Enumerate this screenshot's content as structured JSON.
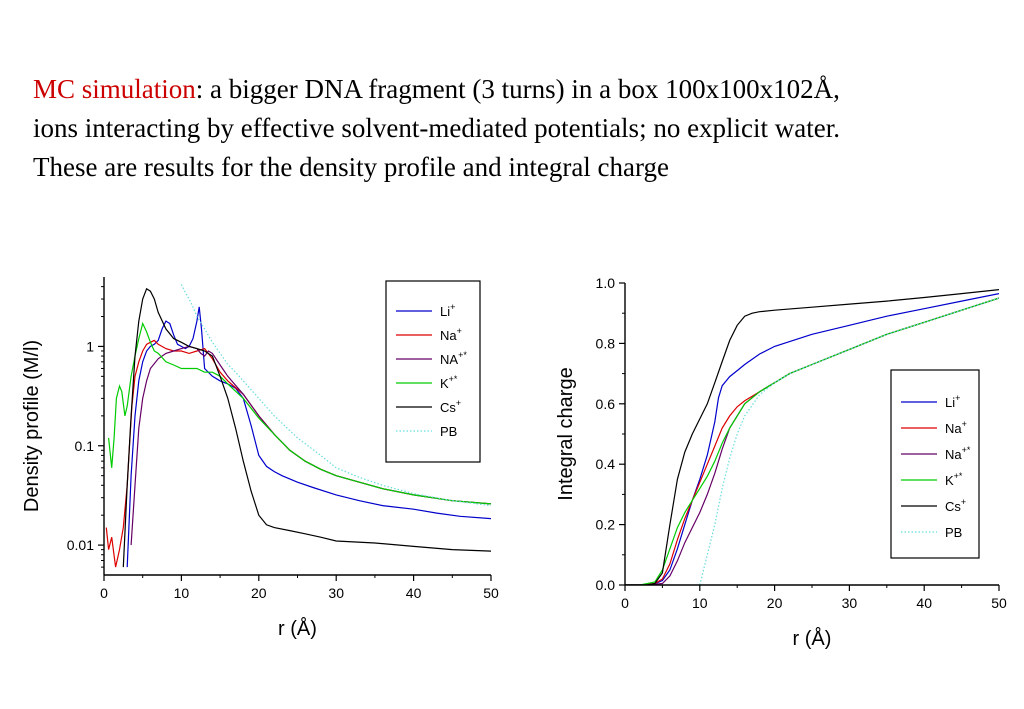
{
  "headline": {
    "highlight": "MC simulation",
    "line1_rest": ": a bigger DNA fragment (3 turns) in a box 100x100x102Å,",
    "line2": "ions interacting by effective solvent-mediated potentials; no explicit water.",
    "line3": "These are results for the density profile and integral charge"
  },
  "chart_data": [
    {
      "type": "line",
      "title": "",
      "xlabel": "r (Å)",
      "ylabel": "Density profile (M/l)",
      "xlim": [
        0,
        50
      ],
      "ylim": [
        0.005,
        5
      ],
      "yscale": "log",
      "x_ticks": [
        "0",
        "10",
        "20",
        "30",
        "40",
        "50"
      ],
      "y_ticks": [
        "0.01",
        "0.1",
        "1"
      ],
      "legend_position": "top-right",
      "series": [
        {
          "name": "Li",
          "sup": "+",
          "color": "#0000cc",
          "dash": "",
          "x": [
            3.0,
            3.5,
            4,
            4.5,
            5,
            5.5,
            6,
            6.5,
            7,
            7.5,
            8,
            8.5,
            9,
            9.5,
            10,
            10.5,
            11,
            11.5,
            12,
            12.3,
            12.6,
            13,
            14,
            15,
            16,
            17,
            18,
            19,
            20,
            21,
            22,
            23,
            25,
            27,
            30,
            33,
            36,
            40,
            43,
            46,
            50
          ],
          "y": [
            0.006,
            0.05,
            0.2,
            0.45,
            0.7,
            0.9,
            1.0,
            1.05,
            1.15,
            1.5,
            1.8,
            1.7,
            1.3,
            1.05,
            1.0,
            0.95,
            1.0,
            1.2,
            1.8,
            2.5,
            1.5,
            0.6,
            0.5,
            0.45,
            0.42,
            0.38,
            0.3,
            0.16,
            0.08,
            0.062,
            0.055,
            0.05,
            0.043,
            0.038,
            0.032,
            0.028,
            0.025,
            0.023,
            0.021,
            0.0195,
            0.0185
          ]
        },
        {
          "name": "Na",
          "sup": "+",
          "color": "#dd0000",
          "dash": "",
          "x": [
            0.3,
            0.6,
            1,
            1.5,
            2,
            2.5,
            3,
            3.3,
            3.6,
            4,
            4.5,
            5,
            5.5,
            6,
            6.5,
            7,
            8,
            9,
            10,
            11,
            12,
            13,
            14,
            15,
            16,
            18,
            20,
            22,
            24,
            26,
            28,
            30,
            33,
            36,
            40,
            45,
            50
          ],
          "y": [
            0.015,
            0.009,
            0.012,
            0.006,
            0.009,
            0.015,
            0.04,
            0.1,
            0.25,
            0.5,
            0.7,
            0.9,
            1.05,
            1.1,
            1.15,
            1.05,
            0.95,
            0.9,
            0.9,
            0.85,
            0.9,
            0.95,
            0.75,
            0.55,
            0.45,
            0.33,
            0.2,
            0.13,
            0.09,
            0.07,
            0.058,
            0.05,
            0.043,
            0.037,
            0.032,
            0.028,
            0.026
          ]
        },
        {
          "name": "NA",
          "sup": "+*",
          "color": "#660066",
          "dash": "",
          "x": [
            3.5,
            4,
            4.5,
            5,
            5.5,
            6,
            7,
            8,
            9,
            10,
            11,
            12,
            12.5,
            13,
            13.5,
            14,
            15,
            16,
            18,
            20,
            22,
            24,
            26,
            28,
            30,
            33,
            36,
            40,
            45,
            50
          ],
          "y": [
            0.01,
            0.04,
            0.15,
            0.3,
            0.45,
            0.6,
            0.75,
            0.85,
            0.9,
            0.95,
            1.0,
            0.95,
            0.85,
            0.8,
            0.9,
            0.85,
            0.65,
            0.5,
            0.33,
            0.2,
            0.13,
            0.09,
            0.07,
            0.058,
            0.05,
            0.043,
            0.037,
            0.032,
            0.028,
            0.026
          ]
        },
        {
          "name": "K",
          "sup": "+*",
          "color": "#00cc00",
          "dash": "",
          "x": [
            0.6,
            1,
            1.3,
            1.6,
            2,
            2.3,
            2.7,
            3,
            3.5,
            4,
            4.5,
            5,
            5.5,
            6,
            6.5,
            7,
            8,
            9,
            10,
            11,
            12,
            13,
            14,
            15,
            16,
            18,
            20,
            22,
            24,
            26,
            28,
            30,
            33,
            36,
            40,
            45,
            50
          ],
          "y": [
            0.12,
            0.06,
            0.12,
            0.3,
            0.4,
            0.35,
            0.2,
            0.25,
            0.5,
            0.8,
            1.2,
            1.7,
            1.4,
            1.1,
            0.9,
            0.85,
            0.7,
            0.65,
            0.6,
            0.6,
            0.6,
            0.55,
            0.55,
            0.5,
            0.42,
            0.3,
            0.19,
            0.13,
            0.09,
            0.07,
            0.058,
            0.05,
            0.043,
            0.037,
            0.032,
            0.028,
            0.026
          ]
        },
        {
          "name": "Cs",
          "sup": "+",
          "color": "#000000",
          "dash": "",
          "x": [
            2.5,
            3,
            3.5,
            4,
            4.5,
            5,
            5.5,
            6,
            6.5,
            7,
            8,
            9,
            10,
            11,
            12,
            13,
            14,
            15,
            16,
            17,
            18,
            19,
            20,
            21,
            22,
            24,
            26,
            28,
            30,
            35,
            40,
            45,
            50
          ],
          "y": [
            0.006,
            0.04,
            0.2,
            0.8,
            1.8,
            3.0,
            3.8,
            3.6,
            3.0,
            2.2,
            1.5,
            1.2,
            1.1,
            1.0,
            0.95,
            0.9,
            0.8,
            0.5,
            0.3,
            0.15,
            0.07,
            0.035,
            0.02,
            0.016,
            0.015,
            0.014,
            0.013,
            0.012,
            0.011,
            0.0105,
            0.0097,
            0.009,
            0.0087
          ]
        },
        {
          "name": "PB",
          "sup": "",
          "color": "#66dddd",
          "dash": "1.5,2",
          "x": [
            10,
            10.5,
            11,
            11.5,
            12,
            13,
            14,
            15,
            16,
            17,
            18,
            20,
            22,
            25,
            28,
            30,
            33,
            36,
            40,
            45,
            50
          ],
          "y": [
            4.2,
            3.5,
            3.0,
            2.5,
            2.0,
            1.5,
            1.1,
            0.85,
            0.66,
            0.55,
            0.45,
            0.3,
            0.2,
            0.12,
            0.08,
            0.06,
            0.048,
            0.04,
            0.033,
            0.028,
            0.025
          ]
        }
      ]
    },
    {
      "type": "line",
      "title": "",
      "xlabel": "r (Å)",
      "ylabel": "Integral charge",
      "xlim": [
        0,
        50
      ],
      "ylim": [
        0,
        1
      ],
      "x_ticks": [
        "0",
        "10",
        "20",
        "30",
        "40",
        "50"
      ],
      "y_ticks": [
        "0.0",
        "0.2",
        "0.4",
        "0.6",
        "0.8",
        "1.0"
      ],
      "legend_position": "center-right",
      "series": [
        {
          "name": "Li",
          "sup": "+",
          "color": "#0000cc",
          "dash": "",
          "x": [
            0,
            2,
            4,
            5,
            6,
            7,
            8,
            9,
            10,
            11,
            12,
            12.5,
            13,
            14,
            15,
            16,
            18,
            20,
            25,
            30,
            35,
            40,
            45,
            50
          ],
          "y": [
            0,
            0,
            0.004,
            0.015,
            0.05,
            0.12,
            0.2,
            0.28,
            0.35,
            0.43,
            0.54,
            0.62,
            0.66,
            0.69,
            0.71,
            0.73,
            0.765,
            0.79,
            0.83,
            0.86,
            0.89,
            0.915,
            0.94,
            0.965
          ]
        },
        {
          "name": "Na",
          "sup": "+",
          "color": "#dd0000",
          "dash": "",
          "x": [
            0,
            2,
            4,
            5,
            6,
            7,
            8,
            9,
            10,
            11,
            12,
            13,
            14,
            15,
            16,
            18,
            20,
            22,
            25,
            30,
            35,
            40,
            45,
            50
          ],
          "y": [
            0,
            0,
            0.005,
            0.02,
            0.07,
            0.15,
            0.22,
            0.28,
            0.34,
            0.4,
            0.46,
            0.52,
            0.56,
            0.59,
            0.61,
            0.64,
            0.67,
            0.7,
            0.73,
            0.78,
            0.83,
            0.87,
            0.91,
            0.95
          ]
        },
        {
          "name": "Na",
          "sup": "+*",
          "color": "#660066",
          "dash": "",
          "x": [
            0,
            3,
            5,
            6,
            7,
            8,
            9,
            10,
            11,
            12,
            13,
            14,
            15,
            16,
            18,
            20,
            22,
            25,
            30,
            35,
            40,
            45,
            50
          ],
          "y": [
            0,
            0,
            0.005,
            0.03,
            0.08,
            0.14,
            0.19,
            0.24,
            0.3,
            0.37,
            0.45,
            0.52,
            0.56,
            0.6,
            0.64,
            0.67,
            0.7,
            0.73,
            0.78,
            0.83,
            0.87,
            0.91,
            0.95
          ]
        },
        {
          "name": "K",
          "sup": "+*",
          "color": "#00cc00",
          "dash": "",
          "x": [
            0,
            2,
            4,
            5,
            6,
            7,
            8,
            9,
            10,
            11,
            12,
            13,
            14,
            15,
            16,
            18,
            20,
            22,
            25,
            30,
            35,
            40,
            45,
            50
          ],
          "y": [
            0,
            0,
            0.01,
            0.05,
            0.12,
            0.19,
            0.24,
            0.28,
            0.32,
            0.36,
            0.41,
            0.47,
            0.52,
            0.56,
            0.6,
            0.64,
            0.67,
            0.7,
            0.73,
            0.78,
            0.83,
            0.87,
            0.91,
            0.95
          ]
        },
        {
          "name": "Cs",
          "sup": "+",
          "color": "#000000",
          "dash": "",
          "x": [
            0,
            3,
            4,
            5,
            6,
            7,
            8,
            9,
            10,
            11,
            12,
            13,
            14,
            15,
            16,
            17,
            18,
            20,
            25,
            30,
            35,
            40,
            45,
            50
          ],
          "y": [
            0,
            0,
            0.005,
            0.04,
            0.2,
            0.35,
            0.44,
            0.5,
            0.55,
            0.6,
            0.67,
            0.74,
            0.81,
            0.86,
            0.89,
            0.9,
            0.905,
            0.91,
            0.92,
            0.93,
            0.94,
            0.952,
            0.965,
            0.978
          ]
        },
        {
          "name": "PB",
          "sup": "",
          "color": "#66dddd",
          "dash": "1.5,2",
          "x": [
            10,
            10.5,
            11,
            12,
            13,
            14,
            15,
            16,
            18,
            20,
            22,
            25,
            30,
            35,
            40,
            45,
            50
          ],
          "y": [
            0,
            0.05,
            0.1,
            0.2,
            0.32,
            0.42,
            0.5,
            0.56,
            0.63,
            0.67,
            0.7,
            0.73,
            0.78,
            0.83,
            0.87,
            0.91,
            0.95
          ]
        }
      ]
    }
  ]
}
